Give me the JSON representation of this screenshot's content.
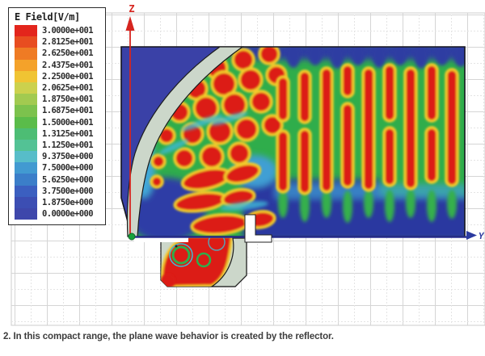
{
  "page": {
    "caption": "2. In this compact range, the plane wave behavior is created by the reflector.",
    "background_color": "#ffffff"
  },
  "legend": {
    "title": "E Field[V/m]",
    "rows": [
      {
        "value": "3.0000e+001",
        "color": "#e3251c"
      },
      {
        "value": "2.8125e+001",
        "color": "#e84d20"
      },
      {
        "value": "2.6250e+001",
        "color": "#ef7b24"
      },
      {
        "value": "2.4375e+001",
        "color": "#f4a22a"
      },
      {
        "value": "2.2500e+001",
        "color": "#f0c433"
      },
      {
        "value": "2.0625e+001",
        "color": "#ccd14d"
      },
      {
        "value": "1.8750e+001",
        "color": "#a2ca50"
      },
      {
        "value": "1.6875e+001",
        "color": "#7cc24d"
      },
      {
        "value": "1.5000e+001",
        "color": "#5abc4a"
      },
      {
        "value": "1.3125e+001",
        "color": "#4dbd74"
      },
      {
        "value": "1.1250e+001",
        "color": "#53c295"
      },
      {
        "value": "9.3750e+000",
        "color": "#57bdc9"
      },
      {
        "value": "7.5000e+000",
        "color": "#429ad1"
      },
      {
        "value": "5.6250e+000",
        "color": "#3b7ec9"
      },
      {
        "value": "3.7500e+000",
        "color": "#3b5fc0"
      },
      {
        "value": "1.8750e+000",
        "color": "#3c4eb3"
      },
      {
        "value": "0.0000e+000",
        "color": "#3e47ab"
      }
    ]
  },
  "axes": {
    "vertical_label": "Z",
    "horizontal_label": "Y",
    "vertical_color": "#d6251f",
    "horizontal_color": "#2b3aa0"
  },
  "chart_data": {
    "type": "heatmap",
    "title": "E Field[V/m]",
    "quantity": "E Field",
    "units": "V/m",
    "value_range": [
      0,
      30
    ],
    "colorbar_ticks": [
      "3.0000e+001",
      "2.8125e+001",
      "2.6250e+001",
      "2.4375e+001",
      "2.2500e+001",
      "2.0625e+001",
      "1.8750e+001",
      "1.6875e+001",
      "1.5000e+001",
      "1.3125e+001",
      "1.1250e+001",
      "9.3750e+000",
      "7.5000e+000",
      "5.6250e+000",
      "3.7500e+000",
      "1.8750e+000",
      "0.0000e+000"
    ],
    "colorbar_colors": [
      "#e3251c",
      "#e84d20",
      "#ef7b24",
      "#f4a22a",
      "#f0c433",
      "#ccd14d",
      "#a2ca50",
      "#7cc24d",
      "#5abc4a",
      "#4dbd74",
      "#53c295",
      "#57bdc9",
      "#429ad1",
      "#3b7ec9",
      "#3b5fc0",
      "#3c4eb3",
      "#3e47ab"
    ],
    "legend_position": "top-left",
    "axis_labels": {
      "vertical": "Z",
      "horizontal": "Y"
    },
    "grid": true,
    "description": "Simulated E-field magnitude in a compact antenna test range: a curved gray reflector converts the spherical wave from the feed horn (below the floor slot) into vertical plane-wave fronts filling the right side of the region; a near-zero (dark blue) shadow zone lies behind the reflector."
  }
}
